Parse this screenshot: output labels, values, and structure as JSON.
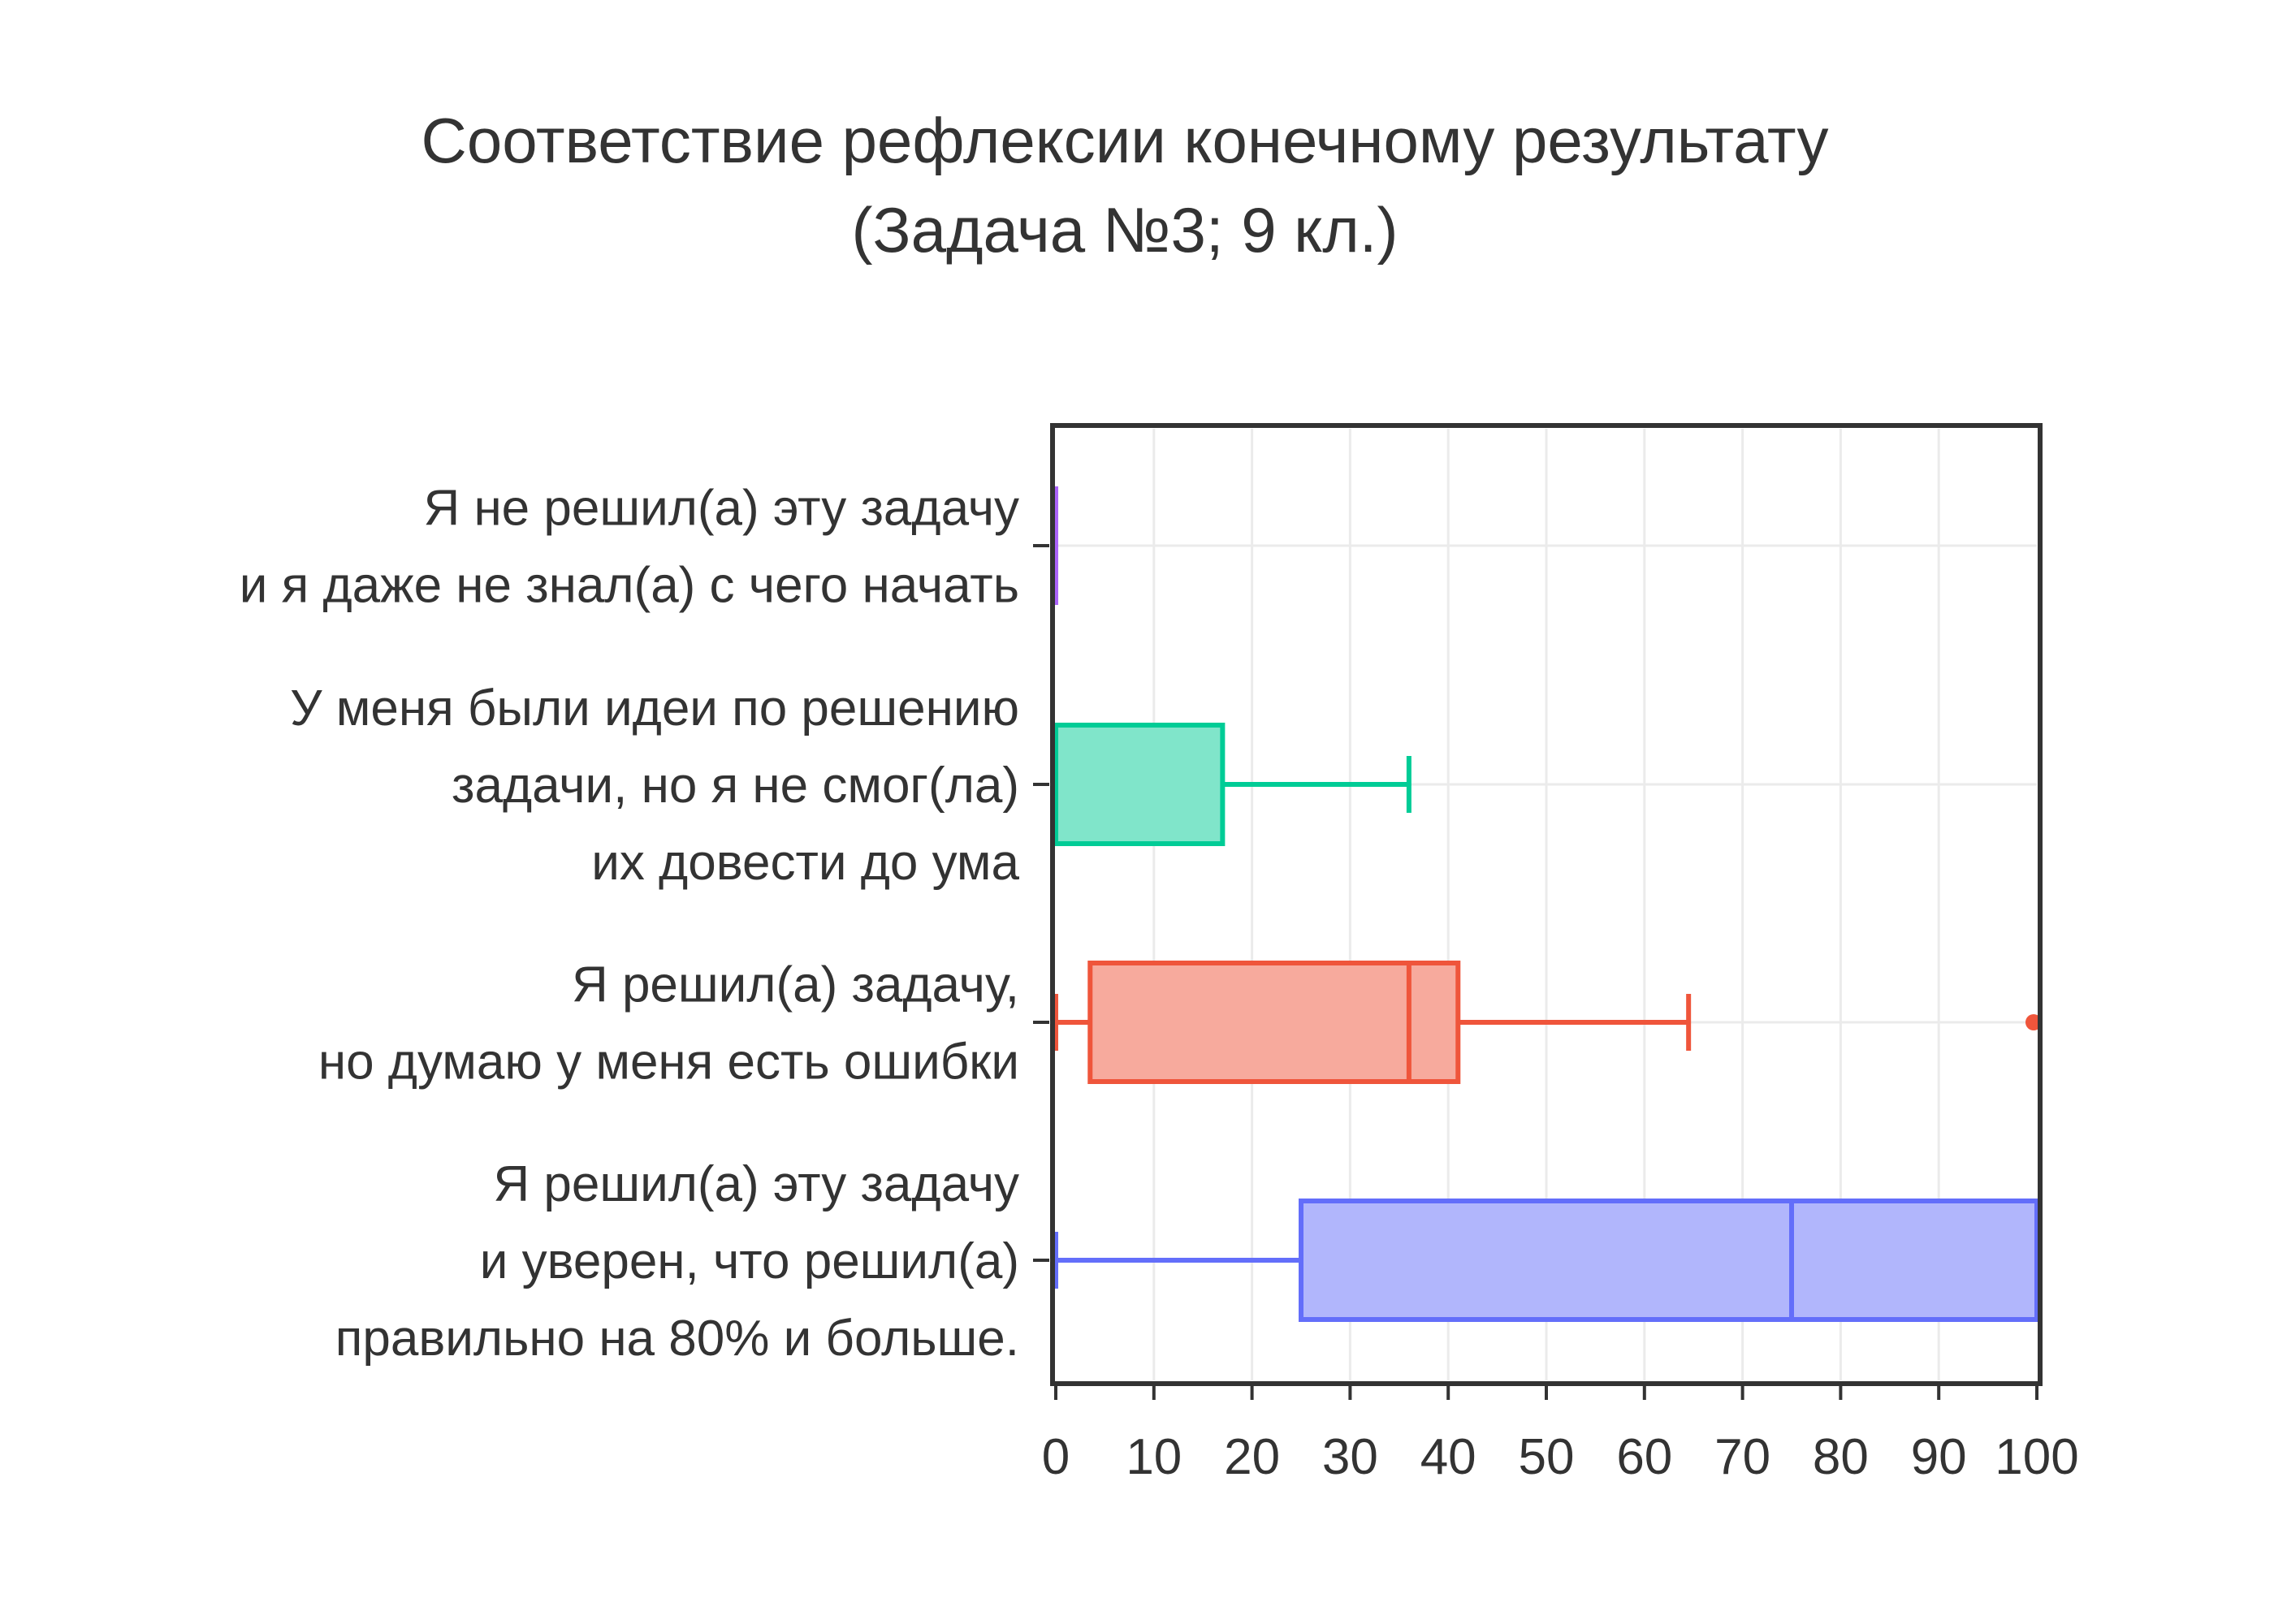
{
  "chart_data": {
    "type": "box",
    "orientation": "horizontal",
    "title_lines": [
      "Соответствие рефлексии конечному результату",
      "(Задача №3; 9 кл.)"
    ],
    "xlabel": "",
    "ylabel": "",
    "xlim": [
      0,
      100
    ],
    "xticks": [
      0,
      10,
      20,
      30,
      40,
      50,
      60,
      70,
      80,
      90,
      100
    ],
    "grid": true,
    "legend": "none",
    "categories": [
      {
        "label_lines": [
          "Я не решил(а) эту задачу",
          "и я даже не знал(а) с чего начать"
        ],
        "min": 0,
        "q1": 0,
        "median": 0,
        "q3": 0,
        "max": 0,
        "outliers": [],
        "color": "#ab63fa",
        "fill": "#d5b1fc"
      },
      {
        "label_lines": [
          "У меня были идеи по решению",
          "задачи, но я не смог(ла)",
          "их довести до ума"
        ],
        "min": 0,
        "q1": 0,
        "median": 0,
        "q3": 17,
        "max": 36,
        "outliers": [],
        "color": "#00cc96",
        "fill": "#80e5ca"
      },
      {
        "label_lines": [
          "Я решил(а) задачу,",
          "но думаю у меня есть ошибки"
        ],
        "min": 0,
        "q1": 3.5,
        "median": 36,
        "q3": 41,
        "max": 64.5,
        "outliers": [
          100
        ],
        "color": "#ef553b",
        "fill": "#f7aa9d"
      },
      {
        "label_lines": [
          "Я решил(а) эту задачу",
          "и уверен, что решил(а)",
          "правильно на 80% и больше."
        ],
        "min": 0,
        "q1": 25,
        "median": 75,
        "q3": 100,
        "max": 100,
        "outliers": [],
        "color": "#636efa",
        "fill": "#b1b6fc"
      }
    ]
  }
}
